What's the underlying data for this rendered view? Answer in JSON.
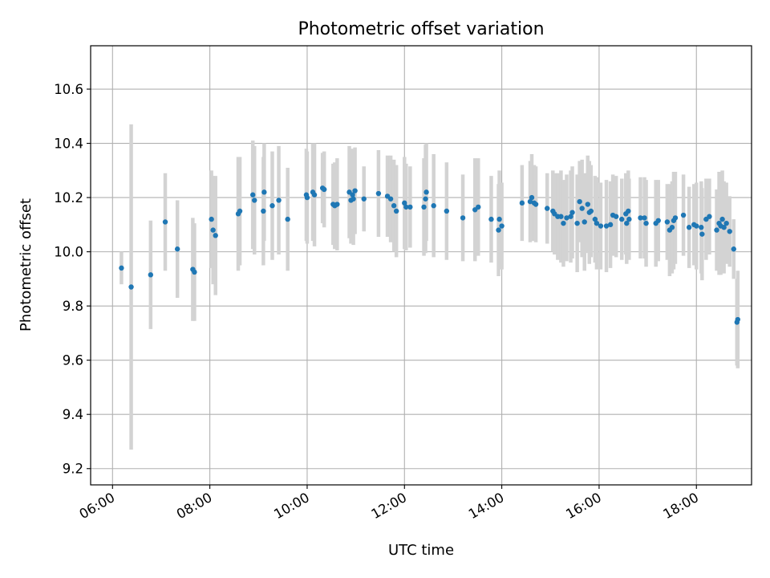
{
  "chart_data": {
    "type": "scatter",
    "title": "Photometric offset variation",
    "xlabel": "UTC time",
    "ylabel": "Photometric offset",
    "x_ticks": [
      "06:00",
      "08:00",
      "10:00",
      "12:00",
      "14:00",
      "16:00",
      "18:00"
    ],
    "y_ticks": [
      "9.2",
      "9.4",
      "9.6",
      "9.8",
      "10.0",
      "10.2",
      "10.4",
      "10.6"
    ],
    "xlim": [
      "05:33",
      "19:08"
    ],
    "ylim": [
      9.14,
      10.76
    ],
    "grid": true,
    "legend": "none",
    "series": [
      {
        "x": [
          "06:11",
          "06:23",
          "06:47",
          "07:05",
          "07:20",
          "07:39",
          "07:41",
          "08:02",
          "08:04",
          "08:07",
          "08:35",
          "08:37",
          "08:53",
          "08:55",
          "09:06",
          "09:07",
          "09:17",
          "09:25",
          "09:36",
          "09:59",
          "10:00",
          "10:07",
          "10:09",
          "10:19",
          "10:21",
          "10:32",
          "10:34",
          "10:37",
          "10:52",
          "10:54",
          "10:56",
          "10:57",
          "10:59",
          "11:10",
          "11:28",
          "11:39",
          "11:43",
          "11:47",
          "11:50",
          "12:00",
          "12:02",
          "12:07",
          "12:24",
          "12:26",
          "12:27",
          "12:36",
          "12:52",
          "13:12",
          "13:27",
          "13:31",
          "13:47",
          "13:56",
          "13:57",
          "14:00",
          "14:25",
          "14:35",
          "14:37",
          "14:40",
          "14:42",
          "14:56",
          "15:03",
          "15:05",
          "15:09",
          "15:13",
          "15:16",
          "15:20",
          "15:25",
          "15:27",
          "15:33",
          "15:36",
          "15:39",
          "15:42",
          "15:46",
          "15:48",
          "15:50",
          "15:55",
          "15:57",
          "16:02",
          "16:09",
          "16:14",
          "16:17",
          "16:21",
          "16:28",
          "16:33",
          "16:34",
          "16:36",
          "16:37",
          "16:51",
          "16:56",
          "16:58",
          "17:10",
          "17:13",
          "17:24",
          "17:27",
          "17:30",
          "17:32",
          "17:34",
          "17:44",
          "17:51",
          "17:57",
          "18:00",
          "18:06",
          "18:07",
          "18:12",
          "18:16",
          "18:25",
          "18:28",
          "18:30",
          "18:32",
          "18:34",
          "18:37",
          "18:41",
          "18:46",
          "18:50",
          "18:51"
        ],
        "y": [
          9.94,
          9.87,
          9.915,
          10.11,
          10.01,
          9.935,
          9.925,
          10.12,
          10.08,
          10.06,
          10.14,
          10.15,
          10.21,
          10.19,
          10.15,
          10.22,
          10.17,
          10.19,
          10.12,
          10.21,
          10.2,
          10.22,
          10.21,
          10.235,
          10.23,
          10.175,
          10.17,
          10.175,
          10.22,
          10.19,
          10.21,
          10.195,
          10.225,
          10.195,
          10.215,
          10.205,
          10.195,
          10.17,
          10.15,
          10.18,
          10.165,
          10.165,
          10.165,
          10.195,
          10.22,
          10.17,
          10.15,
          10.125,
          10.155,
          10.165,
          10.12,
          10.08,
          10.12,
          10.095,
          10.18,
          10.185,
          10.2,
          10.18,
          10.175,
          10.16,
          10.15,
          10.14,
          10.13,
          10.13,
          10.105,
          10.125,
          10.13,
          10.145,
          10.105,
          10.185,
          10.16,
          10.11,
          10.175,
          10.145,
          10.15,
          10.12,
          10.105,
          10.095,
          10.095,
          10.1,
          10.135,
          10.13,
          10.12,
          10.14,
          10.105,
          10.15,
          10.12,
          10.125,
          10.125,
          10.105,
          10.105,
          10.115,
          10.11,
          10.08,
          10.09,
          10.115,
          10.125,
          10.135,
          10.09,
          10.1,
          10.095,
          10.09,
          10.065,
          10.12,
          10.13,
          10.08,
          10.105,
          10.095,
          10.12,
          10.09,
          10.105,
          10.075,
          10.01,
          9.74,
          9.75
        ],
        "err": [
          0.06,
          0.6,
          0.2,
          0.18,
          0.18,
          0.19,
          0.18,
          0.18,
          0.2,
          0.22,
          0.21,
          0.2,
          0.2,
          0.2,
          0.2,
          0.18,
          0.2,
          0.2,
          0.19,
          0.17,
          0.17,
          0.18,
          0.19,
          0.13,
          0.14,
          0.15,
          0.16,
          0.17,
          0.17,
          0.16,
          0.17,
          0.17,
          0.16,
          0.12,
          0.16,
          0.15,
          0.16,
          0.17,
          0.17,
          0.17,
          0.16,
          0.15,
          0.18,
          0.2,
          0.18,
          0.19,
          0.18,
          0.16,
          0.19,
          0.18,
          0.16,
          0.17,
          0.18,
          0.16,
          0.14,
          0.15,
          0.16,
          0.14,
          0.14,
          0.13,
          0.15,
          0.15,
          0.16,
          0.17,
          0.16,
          0.16,
          0.17,
          0.17,
          0.18,
          0.15,
          0.18,
          0.18,
          0.18,
          0.19,
          0.17,
          0.16,
          0.17,
          0.16,
          0.17,
          0.16,
          0.15,
          0.15,
          0.15,
          0.15,
          0.15,
          0.15,
          0.15,
          0.15,
          0.15,
          0.16,
          0.16,
          0.15,
          0.14,
          0.17,
          0.17,
          0.18,
          0.17,
          0.15,
          0.15,
          0.15,
          0.16,
          0.17,
          0.17,
          0.15,
          0.14,
          0.15,
          0.19,
          0.18,
          0.18,
          0.17,
          0.15,
          0.13,
          0.11,
          0.16,
          0.18
        ]
      }
    ],
    "colors": {
      "point": "#1f77b4",
      "errorbar": "#d3d3d3",
      "grid": "#b0b0b0",
      "axes": "#000000"
    }
  }
}
